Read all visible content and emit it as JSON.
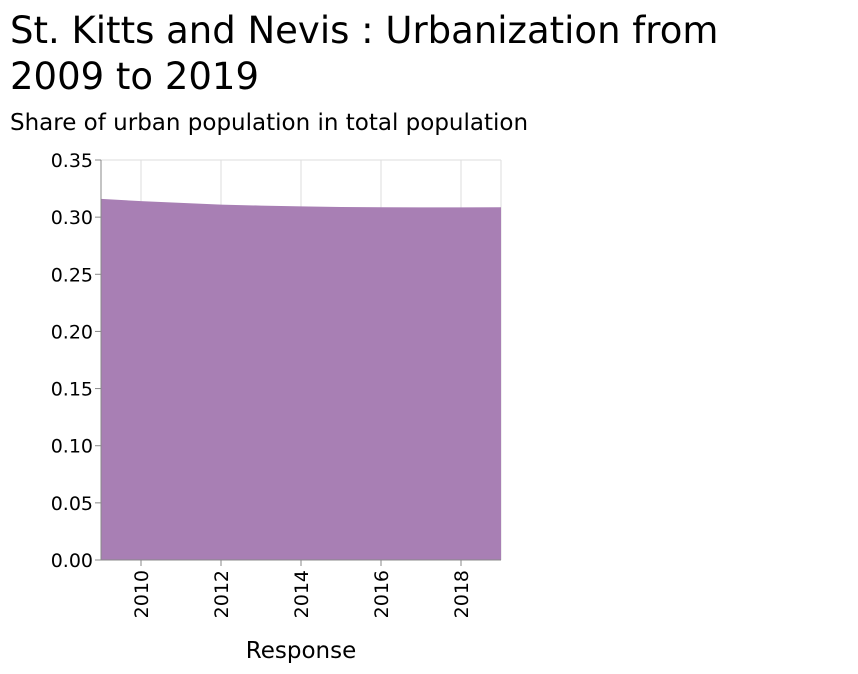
{
  "chart_data": {
    "type": "area",
    "title_lines": [
      "St. Kitts and Nevis : Urbanization from",
      "2009 to 2019"
    ],
    "ylabel": "Share of urban population in total population",
    "xlabel": "Response",
    "x": [
      2009,
      2010,
      2011,
      2012,
      2013,
      2014,
      2015,
      2016,
      2017,
      2018,
      2019
    ],
    "values": [
      0.316,
      0.314,
      0.3125,
      0.311,
      0.3101,
      0.3094,
      0.3089,
      0.3086,
      0.3085,
      0.3085,
      0.3087
    ],
    "xlim": [
      2009,
      2019
    ],
    "ylim": [
      0,
      0.35
    ],
    "x_ticks": [
      "2010",
      "2012",
      "2014",
      "2016",
      "2018"
    ],
    "y_ticks": [
      "0.00",
      "0.05",
      "0.10",
      "0.15",
      "0.20",
      "0.25",
      "0.30",
      "0.35"
    ],
    "grid": true,
    "colors": {
      "fill": "#a87fb4",
      "grid": "#dddddd",
      "axis": "#888888"
    }
  }
}
